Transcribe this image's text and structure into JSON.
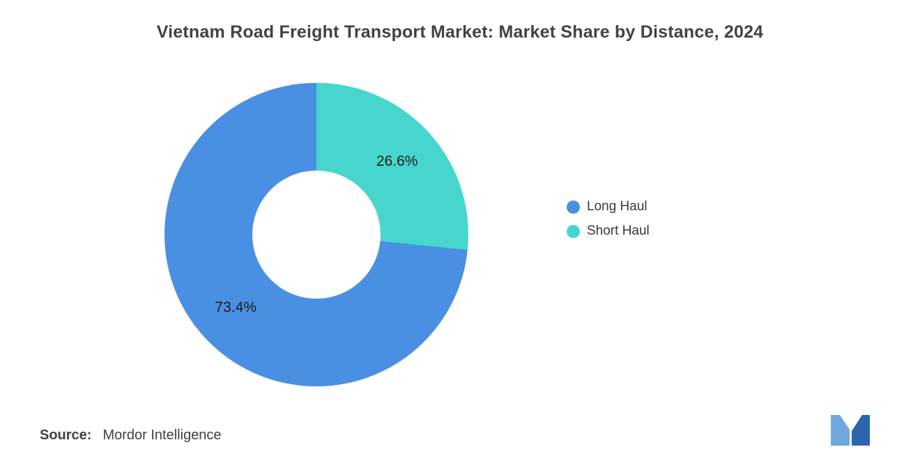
{
  "title": "Vietnam Road Freight Transport Market: Market Share by Distance, 2024",
  "source": {
    "label": "Source:",
    "value": "Mordor Intelligence"
  },
  "legend": {
    "position": "right",
    "items": [
      {
        "label": "Long Haul",
        "color": "#4A90E2"
      },
      {
        "label": "Short Haul",
        "color": "#47D6CE"
      }
    ]
  },
  "logo": {
    "name": "mordor-intelligence-logo",
    "color_light": "#6FA8DC",
    "color_dark": "#2A66AE"
  },
  "chart_data": {
    "type": "pie",
    "donut": true,
    "title": "Vietnam Road Freight Transport Market: Market Share by Distance, 2024",
    "start_angle_deg": 0,
    "direction": "clockwise",
    "inner_radius_pct": 42,
    "legend_position": "right",
    "slices": [
      {
        "label": "Short Haul",
        "value": 26.6,
        "display": "26.6%",
        "color": "#47D6CE"
      },
      {
        "label": "Long Haul",
        "value": 73.4,
        "display": "73.4%",
        "color": "#4A90E2"
      }
    ]
  }
}
